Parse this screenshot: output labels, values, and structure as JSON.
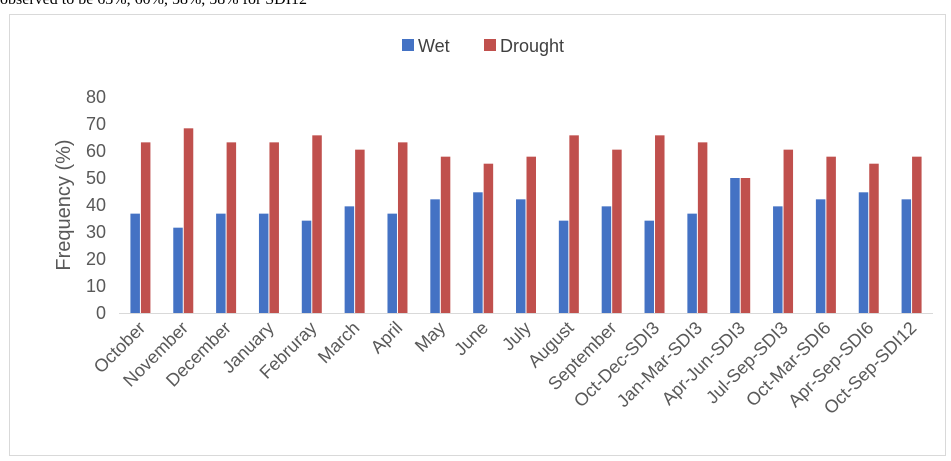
{
  "top_text": "observed to be 63%, 60%, 58%, 58% for SDI12",
  "chart_data": {
    "type": "bar",
    "title": "",
    "xlabel": "",
    "ylabel": "Frequency (%)",
    "ylim": [
      0,
      80
    ],
    "yticks": [
      0,
      10,
      20,
      30,
      40,
      50,
      60,
      70,
      80
    ],
    "grid": false,
    "legend_position": "top",
    "categories": [
      "October",
      "November",
      "December",
      "January",
      "Februray",
      "March",
      "April",
      "May",
      "June",
      "July",
      "August",
      "September",
      "Oct-Dec-SDI3",
      "Jan-Mar-SDI3",
      "Apr-Jun-SDI3",
      "Jul-Sep-SDI3",
      "Oct-Mar-SDI6",
      "Apr-Sep-SDI6",
      "Oct-Sep-SDI12"
    ],
    "series": [
      {
        "name": "Wet",
        "color": "#4472c4",
        "values": [
          36.8,
          31.6,
          36.8,
          36.8,
          34.2,
          39.5,
          36.8,
          42.1,
          44.7,
          42.1,
          34.2,
          39.5,
          34.2,
          36.8,
          50.0,
          39.5,
          42.1,
          44.7,
          42.1
        ]
      },
      {
        "name": "Drought",
        "color": "#c0504d",
        "values": [
          63.2,
          68.4,
          63.2,
          63.2,
          65.8,
          60.5,
          63.2,
          57.9,
          55.3,
          57.9,
          65.8,
          60.5,
          65.8,
          63.2,
          50.0,
          60.5,
          57.9,
          55.3,
          57.9
        ]
      }
    ]
  }
}
